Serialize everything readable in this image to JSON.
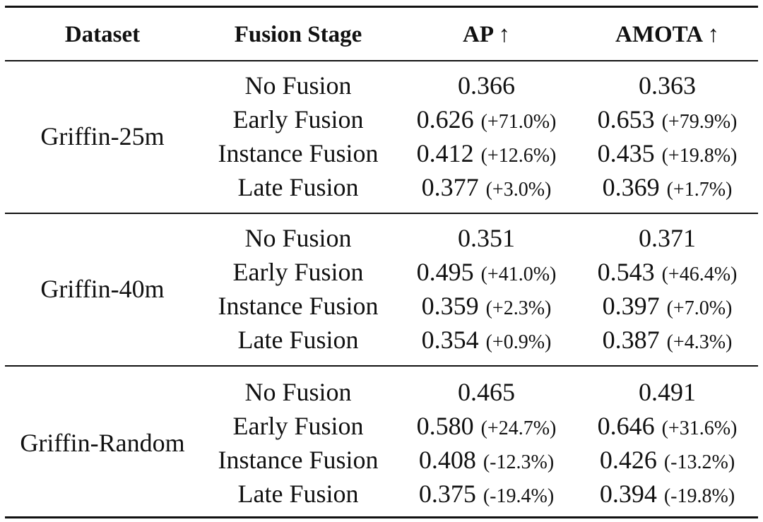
{
  "table": {
    "headers": [
      "Dataset",
      "Fusion Stage",
      "AP ↑",
      "AMOTA ↑"
    ],
    "groups": [
      {
        "dataset": "Griffin-25m",
        "rows": [
          {
            "stage": "No Fusion",
            "ap": "0.366",
            "ap_delta": "",
            "amota": "0.363",
            "amota_delta": ""
          },
          {
            "stage": "Early Fusion",
            "ap": "0.626",
            "ap_delta": "(+71.0%)",
            "amota": "0.653",
            "amota_delta": "(+79.9%)"
          },
          {
            "stage": "Instance Fusion",
            "ap": "0.412",
            "ap_delta": "(+12.6%)",
            "amota": "0.435",
            "amota_delta": "(+19.8%)"
          },
          {
            "stage": "Late Fusion",
            "ap": "0.377",
            "ap_delta": "(+3.0%)",
            "amota": "0.369",
            "amota_delta": "(+1.7%)"
          }
        ]
      },
      {
        "dataset": "Griffin-40m",
        "rows": [
          {
            "stage": "No Fusion",
            "ap": "0.351",
            "ap_delta": "",
            "amota": "0.371",
            "amota_delta": ""
          },
          {
            "stage": "Early Fusion",
            "ap": "0.495",
            "ap_delta": "(+41.0%)",
            "amota": "0.543",
            "amota_delta": "(+46.4%)"
          },
          {
            "stage": "Instance Fusion",
            "ap": "0.359",
            "ap_delta": "(+2.3%)",
            "amota": "0.397",
            "amota_delta": "(+7.0%)"
          },
          {
            "stage": "Late Fusion",
            "ap": "0.354",
            "ap_delta": "(+0.9%)",
            "amota": "0.387",
            "amota_delta": "(+4.3%)"
          }
        ]
      },
      {
        "dataset": "Griffin-Random",
        "rows": [
          {
            "stage": "No Fusion",
            "ap": "0.465",
            "ap_delta": "",
            "amota": "0.491",
            "amota_delta": ""
          },
          {
            "stage": "Early Fusion",
            "ap": "0.580",
            "ap_delta": "(+24.7%)",
            "amota": "0.646",
            "amota_delta": "(+31.6%)"
          },
          {
            "stage": "Instance Fusion",
            "ap": "0.408",
            "ap_delta": "(-12.3%)",
            "amota": "0.426",
            "amota_delta": "(-13.2%)"
          },
          {
            "stage": "Late Fusion",
            "ap": "0.375",
            "ap_delta": "(-19.4%)",
            "amota": "0.394",
            "amota_delta": "(-19.8%)"
          }
        ]
      }
    ]
  }
}
